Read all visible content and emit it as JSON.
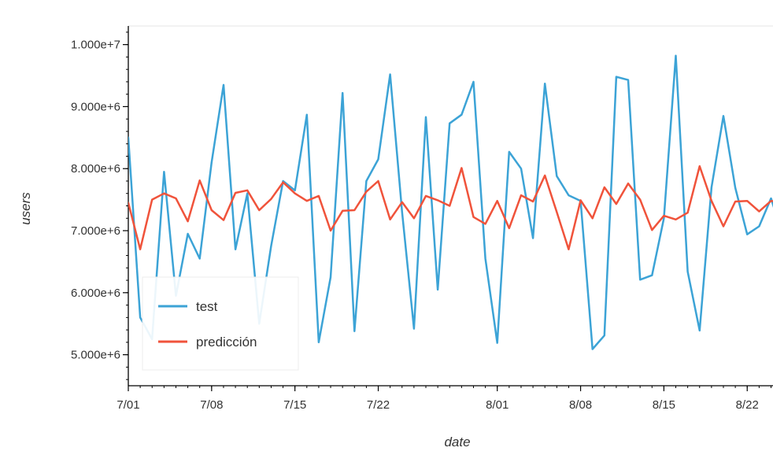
{
  "chart_data": {
    "type": "line",
    "xlabel": "date",
    "ylabel": "users",
    "x_range": [
      "2019-07-01",
      "2019-08-25"
    ],
    "ylim": [
      4500000,
      10300000
    ],
    "x_ticks": [
      {
        "date": "2019-07-01",
        "label": "7/01"
      },
      {
        "date": "2019-07-08",
        "label": "7/08"
      },
      {
        "date": "2019-07-15",
        "label": "7/15"
      },
      {
        "date": "2019-07-22",
        "label": "7/22"
      },
      {
        "date": "2019-08-01",
        "label": "8/01"
      },
      {
        "date": "2019-08-08",
        "label": "8/08"
      },
      {
        "date": "2019-08-15",
        "label": "8/15"
      },
      {
        "date": "2019-08-22",
        "label": "8/22"
      }
    ],
    "y_ticks": [
      {
        "value": 5000000,
        "label": "5.000e+6"
      },
      {
        "value": 6000000,
        "label": "6.000e+6"
      },
      {
        "value": 7000000,
        "label": "7.000e+6"
      },
      {
        "value": 8000000,
        "label": "8.000e+6"
      },
      {
        "value": 9000000,
        "label": "9.000e+6"
      },
      {
        "value": 10000000,
        "label": "1.000e+7"
      }
    ],
    "grid": false,
    "legend": {
      "placement": "bottom-left"
    },
    "x": [
      "2019-07-01",
      "2019-07-02",
      "2019-07-03",
      "2019-07-04",
      "2019-07-05",
      "2019-07-06",
      "2019-07-07",
      "2019-07-08",
      "2019-07-09",
      "2019-07-10",
      "2019-07-11",
      "2019-07-12",
      "2019-07-13",
      "2019-07-14",
      "2019-07-15",
      "2019-07-16",
      "2019-07-17",
      "2019-07-18",
      "2019-07-19",
      "2019-07-20",
      "2019-07-21",
      "2019-07-22",
      "2019-07-23",
      "2019-07-24",
      "2019-07-25",
      "2019-07-26",
      "2019-07-27",
      "2019-07-28",
      "2019-07-29",
      "2019-07-30",
      "2019-07-31",
      "2019-08-01",
      "2019-08-02",
      "2019-08-03",
      "2019-08-04",
      "2019-08-05",
      "2019-08-06",
      "2019-08-07",
      "2019-08-08",
      "2019-08-09",
      "2019-08-10",
      "2019-08-11",
      "2019-08-12",
      "2019-08-13",
      "2019-08-14",
      "2019-08-15",
      "2019-08-16",
      "2019-08-17",
      "2019-08-18",
      "2019-08-19",
      "2019-08-20",
      "2019-08-21",
      "2019-08-22",
      "2019-08-23",
      "2019-08-24",
      "2019-08-25"
    ],
    "series": [
      {
        "name": "test",
        "color": "#3ca3d6",
        "values": [
          8500000,
          5600000,
          5250000,
          7950000,
          5950000,
          6950000,
          6550000,
          8100000,
          9350000,
          6700000,
          7600000,
          5500000,
          6750000,
          7800000,
          7650000,
          8870000,
          5200000,
          6250000,
          9220000,
          5380000,
          7800000,
          8150000,
          9520000,
          7300000,
          5420000,
          8830000,
          6050000,
          8730000,
          8870000,
          9400000,
          6550000,
          5190000,
          8270000,
          8000000,
          6880000,
          9370000,
          7880000,
          7570000,
          7480000,
          5090000,
          5310000,
          9480000,
          9430000,
          6210000,
          6280000,
          7200000,
          9820000,
          6340000,
          5390000,
          7700000,
          8850000,
          7690000,
          6940000,
          7070000,
          7520000,
          6920000
        ]
      },
      {
        "name": "predicción",
        "color": "#f0533b",
        "values": [
          7450000,
          6700000,
          7500000,
          7600000,
          7520000,
          7150000,
          7810000,
          7330000,
          7170000,
          7610000,
          7650000,
          7330000,
          7510000,
          7780000,
          7600000,
          7480000,
          7560000,
          7000000,
          7320000,
          7330000,
          7630000,
          7800000,
          7180000,
          7460000,
          7200000,
          7560000,
          7490000,
          7400000,
          8010000,
          7220000,
          7110000,
          7480000,
          7040000,
          7570000,
          7470000,
          7890000,
          7300000,
          6700000,
          7490000,
          7200000,
          7700000,
          7430000,
          7760000,
          7500000,
          7010000,
          7240000,
          7180000,
          7290000,
          8040000,
          7480000,
          7070000,
          7470000,
          7480000,
          7310000,
          7480000,
          7450000
        ]
      }
    ]
  }
}
